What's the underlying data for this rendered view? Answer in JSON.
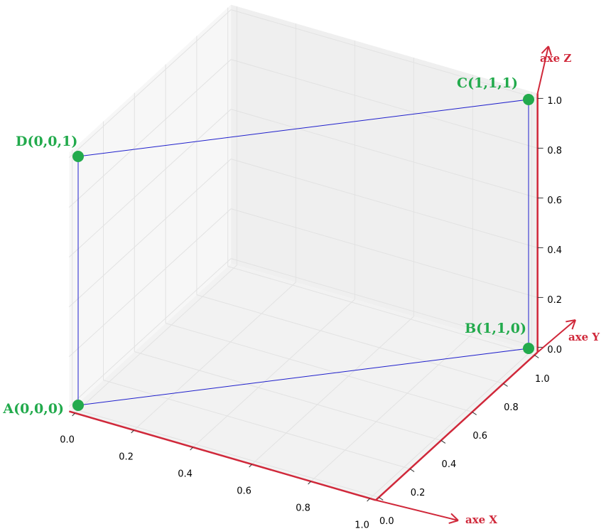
{
  "chart_data": {
    "type": "line3d",
    "series": [
      {
        "x": [
          0,
          1,
          1,
          0
        ],
        "y": [
          0,
          1,
          1,
          0
        ],
        "z": [
          0,
          0,
          1,
          1
        ],
        "labels": [
          "A(0,0,0)",
          "B(1,1,0)",
          "C(1,1,1)",
          "D(0,0,1)"
        ],
        "color": "#1f1fcc",
        "marker_color": "#22aa4c"
      }
    ],
    "xlim": [
      -0.02,
      1.02
    ],
    "ylim": [
      -0.02,
      1.02
    ],
    "zlim": [
      -0.02,
      1.02
    ],
    "xticks": [
      {
        "value": 0,
        "label": "0.0"
      },
      {
        "value": 0.2,
        "label": "0.2"
      },
      {
        "value": 0.4,
        "label": "0.4"
      },
      {
        "value": 0.6,
        "label": "0.6"
      },
      {
        "value": 0.8,
        "label": "0.8"
      },
      {
        "value": 1,
        "label": "1.0"
      }
    ],
    "yticks": [
      {
        "value": 0,
        "label": "0.0"
      },
      {
        "value": 0.2,
        "label": "0.2"
      },
      {
        "value": 0.4,
        "label": "0.4"
      },
      {
        "value": 0.6,
        "label": "0.6"
      },
      {
        "value": 0.8,
        "label": "0.8"
      },
      {
        "value": 1,
        "label": "1.0"
      }
    ],
    "zticks": [
      {
        "value": 0,
        "label": "0.0"
      },
      {
        "value": 0.2,
        "label": "0.2"
      },
      {
        "value": 0.4,
        "label": "0.4"
      },
      {
        "value": 0.6,
        "label": "0.6"
      },
      {
        "value": 0.8,
        "label": "0.8"
      },
      {
        "value": 1,
        "label": "1.0"
      }
    ],
    "axis_annotations": {
      "x": "axe X",
      "y": "axe Y",
      "z": "axe Z",
      "color": "#d0283a"
    },
    "grid": true
  }
}
